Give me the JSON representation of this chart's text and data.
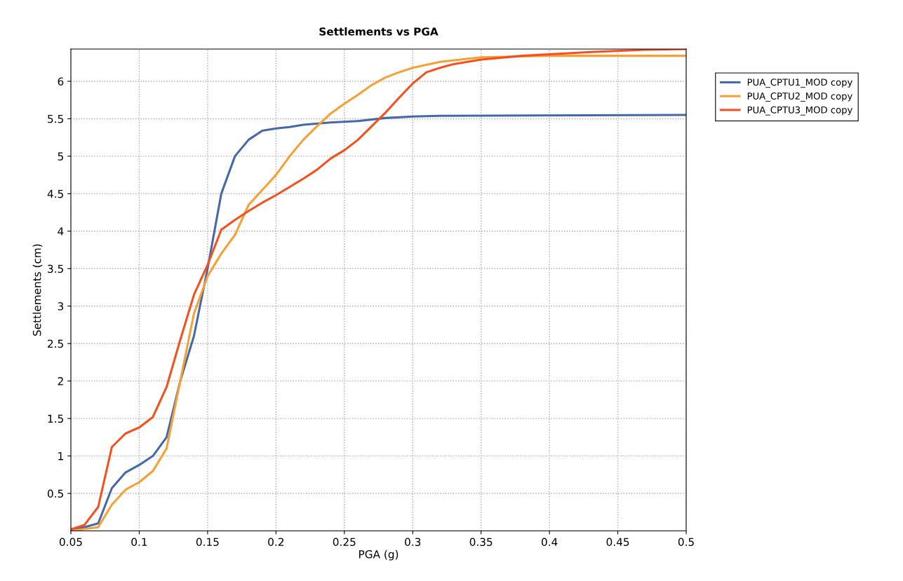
{
  "chart_data": {
    "type": "line",
    "title": "Settlements vs PGA",
    "xlabel": "PGA (g)",
    "ylabel": "Settlements (cm)",
    "xlim": [
      0.05,
      0.5
    ],
    "xticks": [
      0.05,
      0.1,
      0.15,
      0.2,
      0.25,
      0.3,
      0.35,
      0.4,
      0.45,
      0.5
    ],
    "ylim": [
      0,
      6.43
    ],
    "yticks": [
      0.5,
      1,
      1.5,
      2,
      2.5,
      3,
      3.5,
      4,
      4.5,
      5,
      5.5,
      6
    ],
    "grid": true,
    "legend": "top right",
    "marker": "none",
    "line_style": "solid",
    "series": [
      {
        "name": "PUA_CPTU1_MOD copy",
        "color": "#4468a8",
        "x": [
          0.05,
          0.06,
          0.07,
          0.08,
          0.09,
          0.1,
          0.11,
          0.12,
          0.13,
          0.14,
          0.15,
          0.16,
          0.17,
          0.18,
          0.19,
          0.2,
          0.21,
          0.22,
          0.24,
          0.26,
          0.28,
          0.3,
          0.32,
          0.5
        ],
        "values": [
          0.02,
          0.05,
          0.1,
          0.57,
          0.78,
          0.88,
          1.0,
          1.25,
          2.0,
          2.6,
          3.5,
          4.5,
          5.0,
          5.22,
          5.34,
          5.37,
          5.39,
          5.42,
          5.45,
          5.47,
          5.51,
          5.53,
          5.54,
          5.55
        ]
      },
      {
        "name": "PUA_CPTU2_MOD copy",
        "color": "#f7a035",
        "x": [
          0.05,
          0.07,
          0.08,
          0.09,
          0.1,
          0.11,
          0.12,
          0.13,
          0.14,
          0.15,
          0.16,
          0.17,
          0.18,
          0.19,
          0.2,
          0.21,
          0.22,
          0.23,
          0.24,
          0.25,
          0.26,
          0.27,
          0.28,
          0.29,
          0.3,
          0.32,
          0.35,
          0.4,
          0.5
        ],
        "values": [
          0.0,
          0.05,
          0.35,
          0.55,
          0.65,
          0.8,
          1.1,
          2.0,
          2.9,
          3.4,
          3.7,
          3.95,
          4.35,
          4.55,
          4.75,
          5.0,
          5.22,
          5.4,
          5.57,
          5.7,
          5.82,
          5.95,
          6.05,
          6.12,
          6.18,
          6.26,
          6.32,
          6.34,
          6.34
        ]
      },
      {
        "name": "PUA_CPTU3_MOD copy",
        "color": "#f5501e",
        "x": [
          0.05,
          0.06,
          0.07,
          0.08,
          0.09,
          0.1,
          0.11,
          0.12,
          0.13,
          0.14,
          0.15,
          0.16,
          0.17,
          0.18,
          0.19,
          0.2,
          0.22,
          0.23,
          0.24,
          0.25,
          0.26,
          0.27,
          0.28,
          0.29,
          0.3,
          0.31,
          0.32,
          0.33,
          0.35,
          0.38,
          0.4,
          0.43,
          0.47,
          0.5
        ],
        "values": [
          0.02,
          0.08,
          0.32,
          1.12,
          1.3,
          1.38,
          1.52,
          1.92,
          2.55,
          3.15,
          3.55,
          4.02,
          4.15,
          4.27,
          4.38,
          4.48,
          4.7,
          4.82,
          4.97,
          5.08,
          5.22,
          5.4,
          5.58,
          5.78,
          5.97,
          6.12,
          6.18,
          6.23,
          6.29,
          6.34,
          6.36,
          6.39,
          6.42,
          6.43
        ]
      }
    ]
  }
}
